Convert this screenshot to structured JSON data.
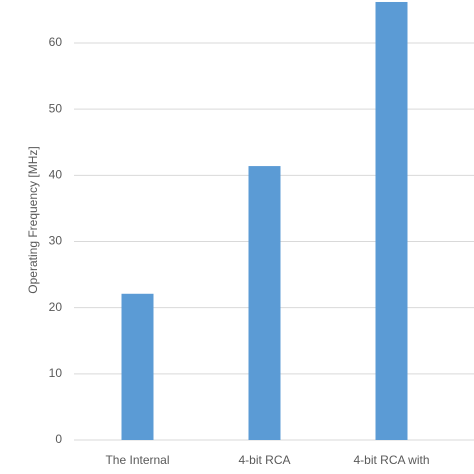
{
  "chart_data": {
    "type": "bar",
    "y_label": "Operating Frequency [MHz]",
    "categories": [
      "The Internal",
      "4-bit RCA",
      "4-bit RCA with"
    ],
    "values": [
      22.1,
      41.4,
      66.2
    ],
    "color": "#5b9bd5",
    "ylim": [
      0,
      66.5
    ],
    "yticks": [
      0,
      10,
      20,
      30,
      40,
      50,
      60
    ],
    "grid": true
  }
}
